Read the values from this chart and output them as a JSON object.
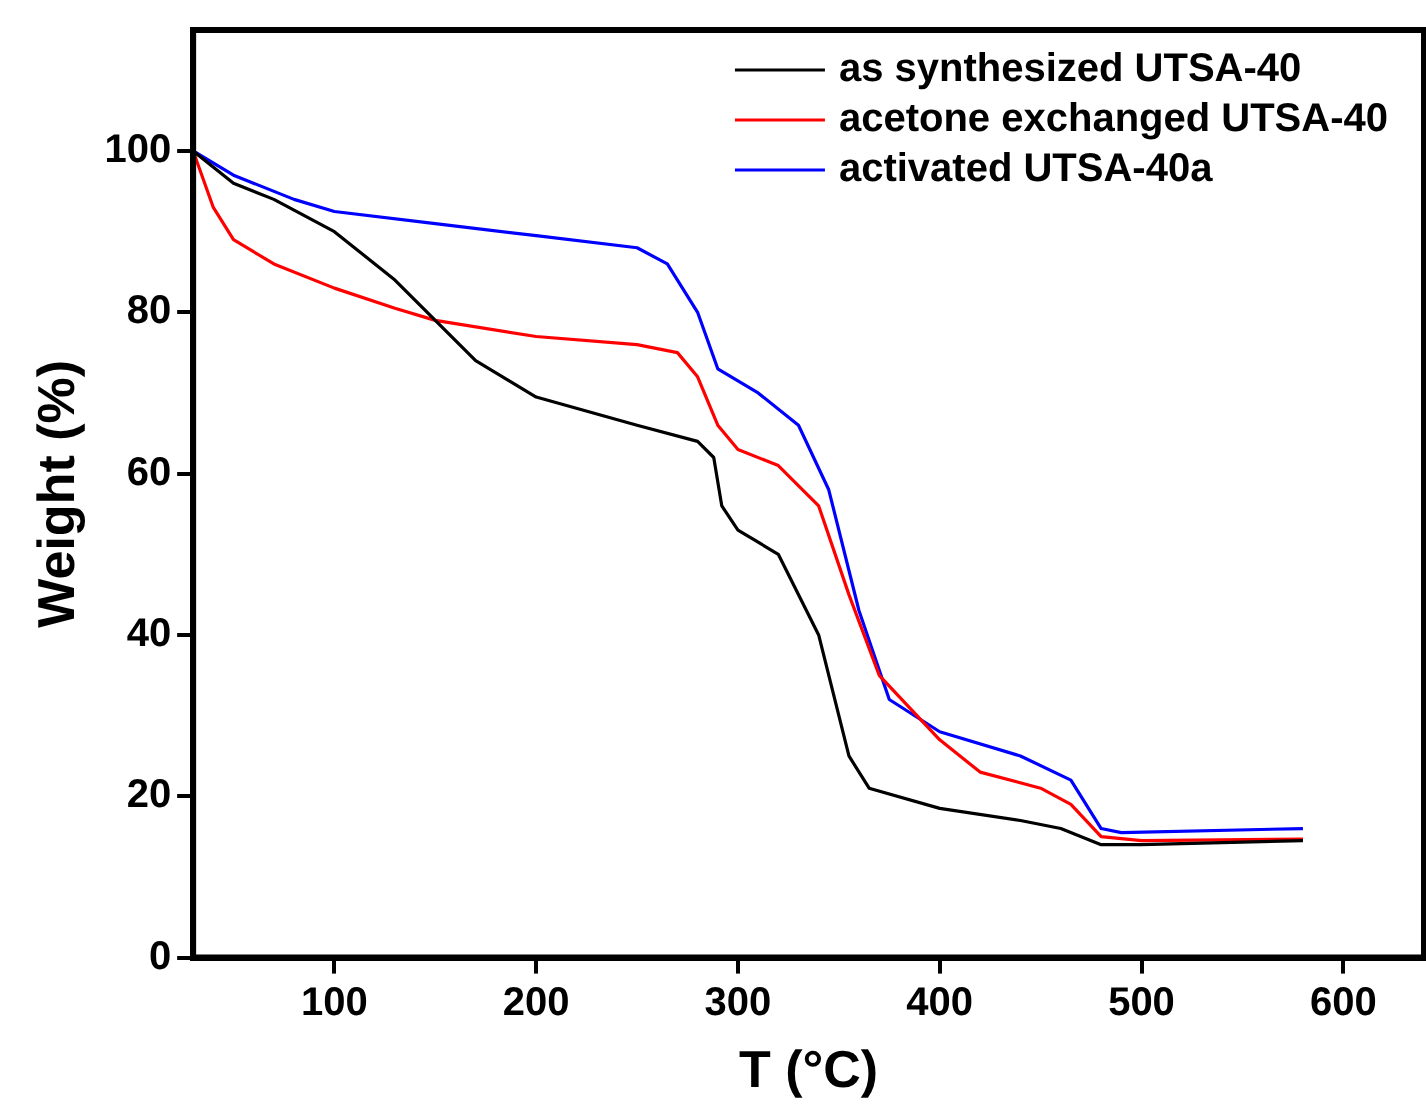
{
  "chart_data": {
    "type": "line",
    "xlabel": "T (°C)",
    "ylabel": "Weight (%)",
    "xlim": [
      30,
      640
    ],
    "ylim": [
      0,
      115
    ],
    "xticks": [
      100,
      200,
      300,
      400,
      500,
      600
    ],
    "yticks": [
      0,
      20,
      40,
      60,
      80,
      100
    ],
    "grid": false,
    "legend": "top right",
    "marker": "none",
    "line_style": "solid",
    "series": [
      {
        "name": "as synthesized UTSA-40",
        "color": "#000000",
        "x": [
          30,
          50,
          70,
          100,
          130,
          150,
          170,
          200,
          250,
          280,
          288,
          292,
          300,
          320,
          340,
          355,
          365,
          400,
          440,
          460,
          480,
          500,
          580
        ],
        "values": [
          100,
          96,
          94,
          90,
          84,
          79,
          74,
          69.5,
          66,
          64,
          62,
          56,
          53,
          50,
          40,
          25,
          21,
          18.5,
          17,
          16,
          14,
          14,
          14.5
        ]
      },
      {
        "name": "acetone exchanged UTSA-40",
        "color": "#ff0000",
        "x": [
          30,
          40,
          50,
          70,
          100,
          130,
          150,
          200,
          250,
          270,
          280,
          290,
          300,
          320,
          340,
          355,
          370,
          400,
          420,
          450,
          465,
          480,
          500,
          580
        ],
        "values": [
          100,
          93,
          89,
          86,
          83,
          80.5,
          79,
          77,
          76,
          75,
          72,
          66,
          63,
          61,
          56,
          45,
          35,
          27,
          23,
          21,
          19,
          15,
          14.5,
          14.7
        ]
      },
      {
        "name": "activated UTSA-40a",
        "color": "#0000ff",
        "x": [
          30,
          50,
          80,
          100,
          150,
          200,
          250,
          265,
          280,
          290,
          310,
          330,
          345,
          360,
          375,
          400,
          440,
          465,
          480,
          490,
          580
        ],
        "values": [
          100,
          97,
          94,
          92.5,
          91,
          89.5,
          88,
          86,
          80,
          73,
          70,
          66,
          58,
          43,
          32,
          28,
          25,
          22,
          16,
          15.5,
          16
        ]
      }
    ]
  }
}
